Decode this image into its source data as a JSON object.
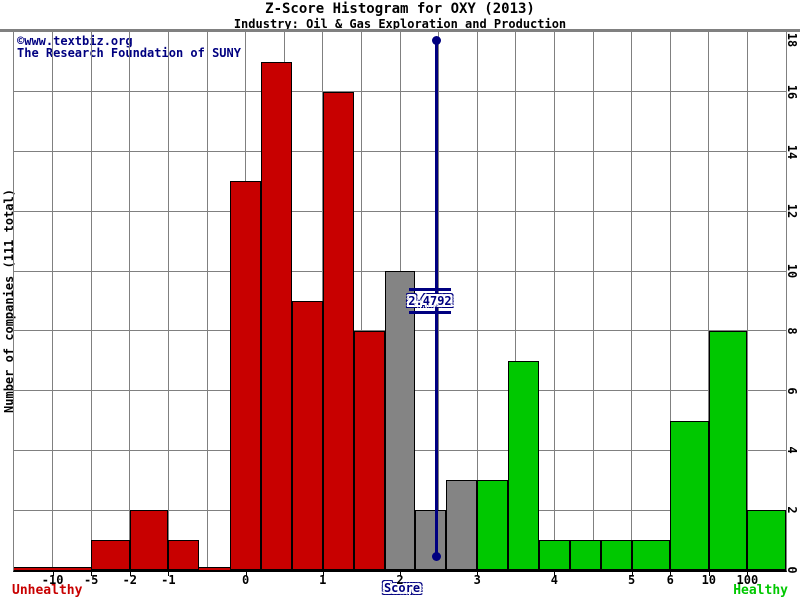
{
  "header": {
    "title": "Z-Score Histogram for OXY (2013)",
    "subtitle": "Industry: Oil & Gas Exploration and Production"
  },
  "watermark": {
    "line1": "©www.textbiz.org",
    "line2": "The Research Foundation of SUNY"
  },
  "axes": {
    "y_title": "Number of companies (111 total)",
    "x_title": "Score",
    "x_ticks": [
      {
        "v": -10,
        "label": "-10"
      },
      {
        "v": -5,
        "label": "-5"
      },
      {
        "v": -2,
        "label": "-2"
      },
      {
        "v": -1,
        "label": "-1"
      },
      {
        "v": 0,
        "label": "0"
      },
      {
        "v": 1,
        "label": "1"
      },
      {
        "v": 2,
        "label": "2"
      },
      {
        "v": 3,
        "label": "3"
      },
      {
        "v": 4,
        "label": "4"
      },
      {
        "v": 5,
        "label": "5"
      },
      {
        "v": 6,
        "label": "6"
      },
      {
        "v": 10,
        "label": "10"
      },
      {
        "v": 100,
        "label": "100"
      }
    ],
    "y_ticks": [
      {
        "v": 0,
        "label": "0"
      },
      {
        "v": 2,
        "label": "2"
      },
      {
        "v": 4,
        "label": "4"
      },
      {
        "v": 6,
        "label": "6"
      },
      {
        "v": 8,
        "label": "8"
      },
      {
        "v": 10,
        "label": "10"
      },
      {
        "v": 12,
        "label": "12"
      },
      {
        "v": 14,
        "label": "14"
      },
      {
        "v": 16,
        "label": "16"
      },
      {
        "v": 18,
        "label": "18"
      }
    ]
  },
  "zone_labels": {
    "left": "Unhealthy",
    "right": "Healthy"
  },
  "marker": {
    "value": 2.4792,
    "label": "2.4792"
  },
  "colors": {
    "unhealthy": "#C80000",
    "distress": "#848484",
    "healthy": "#00C800",
    "navy": "#000080",
    "grid": "#808080",
    "axis": "#000000"
  },
  "chart_data": {
    "type": "bar",
    "title": "Z-Score Histogram for OXY (2013)",
    "subtitle": "Industry: Oil & Gas Exploration and Production",
    "xlabel": "Score",
    "ylabel": "Number of companies (111 total)",
    "total_companies": 111,
    "ylim": [
      0,
      18
    ],
    "grid": true,
    "marker_value": 2.4792,
    "bins": [
      {
        "from": "-inf",
        "to": -10,
        "count": 0,
        "zone": "unhealthy"
      },
      {
        "from": -10,
        "to": -5,
        "count": 0,
        "zone": "unhealthy"
      },
      {
        "from": -5,
        "to": -2,
        "count": 1,
        "zone": "unhealthy"
      },
      {
        "from": -2,
        "to": -1,
        "count": 2,
        "zone": "unhealthy"
      },
      {
        "from": -1,
        "to": -0.6,
        "count": 1,
        "zone": "unhealthy"
      },
      {
        "from": -0.6,
        "to": -0.2,
        "count": 0,
        "zone": "unhealthy"
      },
      {
        "from": -0.2,
        "to": 0.2,
        "count": 13,
        "zone": "unhealthy"
      },
      {
        "from": 0.2,
        "to": 0.6,
        "count": 17,
        "zone": "unhealthy"
      },
      {
        "from": 0.6,
        "to": 1,
        "count": 9,
        "zone": "unhealthy"
      },
      {
        "from": 1,
        "to": 1.4,
        "count": 16,
        "zone": "unhealthy"
      },
      {
        "from": 1.4,
        "to": 1.8,
        "count": 8,
        "zone": "unhealthy"
      },
      {
        "from": 1.8,
        "to": 2.2,
        "count": 10,
        "zone": "distress"
      },
      {
        "from": 2.2,
        "to": 2.6,
        "count": 2,
        "zone": "distress"
      },
      {
        "from": 2.6,
        "to": 3,
        "count": 3,
        "zone": "distress"
      },
      {
        "from": 3,
        "to": 3.4,
        "count": 3,
        "zone": "healthy"
      },
      {
        "from": 3.4,
        "to": 3.8,
        "count": 7,
        "zone": "healthy"
      },
      {
        "from": 3.8,
        "to": 4.2,
        "count": 1,
        "zone": "healthy"
      },
      {
        "from": 4.2,
        "to": 4.6,
        "count": 1,
        "zone": "healthy"
      },
      {
        "from": 4.6,
        "to": 5,
        "count": 1,
        "zone": "healthy"
      },
      {
        "from": 5,
        "to": 6,
        "count": 1,
        "zone": "healthy"
      },
      {
        "from": 6,
        "to": 10,
        "count": 5,
        "zone": "healthy"
      },
      {
        "from": 10,
        "to": 100,
        "count": 8,
        "zone": "healthy"
      },
      {
        "from": 100,
        "to": "+inf",
        "count": 2,
        "zone": "healthy"
      }
    ]
  }
}
